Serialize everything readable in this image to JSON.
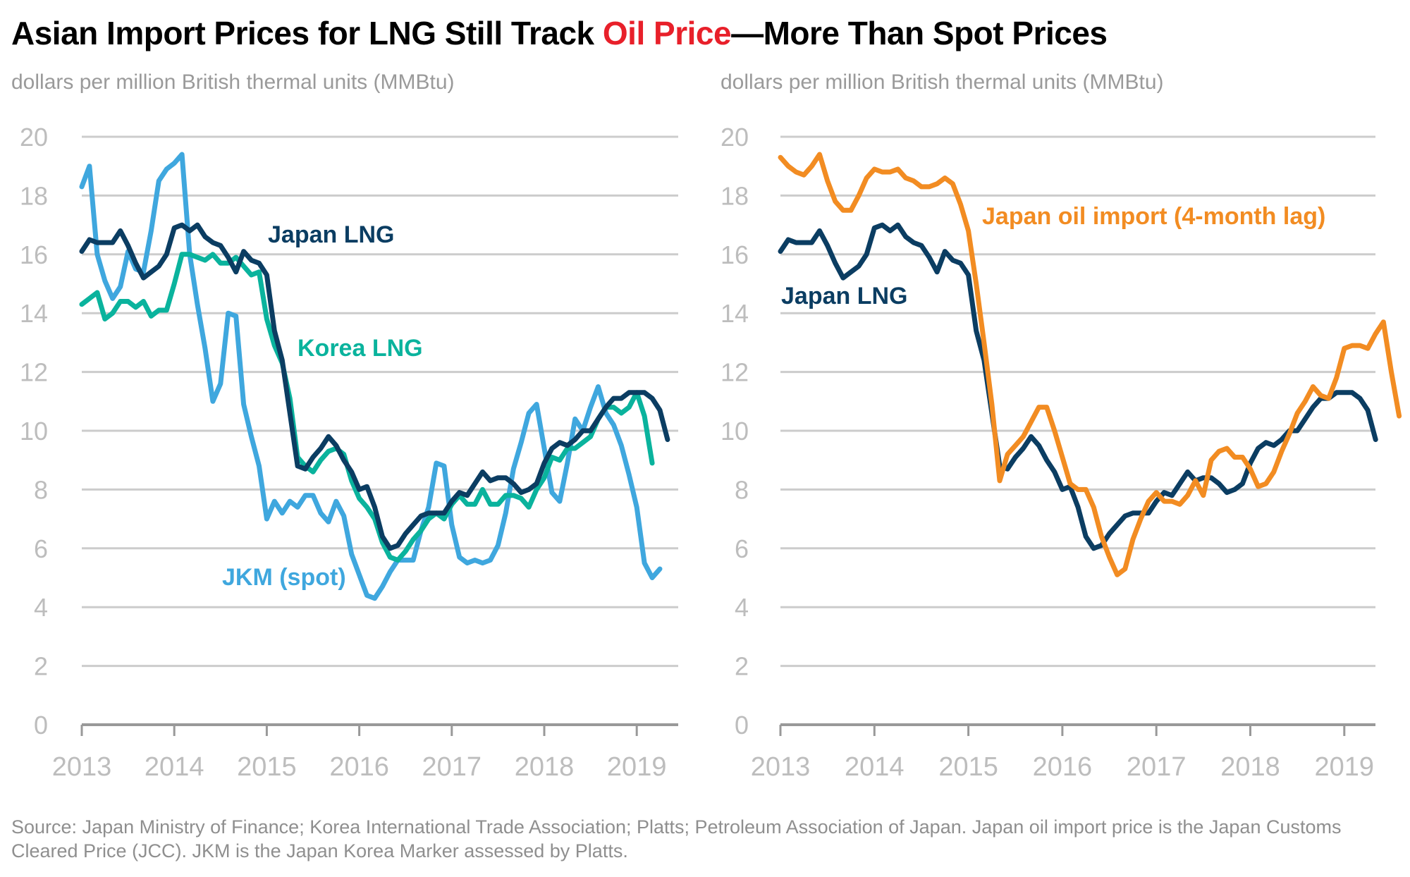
{
  "title": {
    "part1": "Asian Import Prices for LNG Still Track ",
    "highlight": "Oil Price",
    "part2": "—More Than Spot Prices"
  },
  "source": "Source: Japan Ministry of Finance; Korea International Trade Association; Platts; Petroleum Association of Japan. Japan oil import price is the Japan Customs Cleared Price (JCC). JKM is the Japan Korea Marker assessed by Platts.",
  "colors": {
    "japan_lng": "#0b3d62",
    "korea_lng": "#0ab39d",
    "jkm": "#3fa7de",
    "oil": "#f28c22",
    "highlight": "#e8202a",
    "grid": "#cccccc",
    "axis": "#999999"
  },
  "chart_data": [
    {
      "type": "line",
      "title": "",
      "ylabel": "dollars per million British thermal units (MMBtu)",
      "xlabel": "",
      "ylim": [
        0,
        20
      ],
      "yticks": [
        0,
        2,
        4,
        6,
        8,
        10,
        12,
        14,
        16,
        18,
        20
      ],
      "xticks": [
        "2013",
        "2014",
        "2015",
        "2016",
        "2017",
        "2018",
        "2019"
      ],
      "x_start": "2013-01",
      "x_frequency": "monthly",
      "grid": true,
      "series": [
        {
          "name": "Japan LNG",
          "key": "japan_lng",
          "label": "Japan LNG",
          "values": [
            16.1,
            16.5,
            16.4,
            16.4,
            16.4,
            16.8,
            16.3,
            15.7,
            15.2,
            15.4,
            15.6,
            16.0,
            16.9,
            17.0,
            16.8,
            17.0,
            16.6,
            16.4,
            16.3,
            15.9,
            15.4,
            16.1,
            15.8,
            15.7,
            15.3,
            13.4,
            12.4,
            10.6,
            8.8,
            8.7,
            9.1,
            9.4,
            9.8,
            9.5,
            9.0,
            8.6,
            8.0,
            8.1,
            7.4,
            6.4,
            6.0,
            6.1,
            6.5,
            6.8,
            7.1,
            7.2,
            7.2,
            7.2,
            7.6,
            7.9,
            7.8,
            8.2,
            8.6,
            8.3,
            8.4,
            8.4,
            8.2,
            7.9,
            8.0,
            8.2,
            8.9,
            9.4,
            9.6,
            9.5,
            9.7,
            10.0,
            10.0,
            10.4,
            10.8,
            11.1,
            11.1,
            11.3,
            11.3,
            11.3,
            11.1,
            10.7,
            9.7
          ]
        },
        {
          "name": "Korea LNG",
          "key": "korea_lng",
          "label": "Korea LNG",
          "values": [
            14.3,
            14.5,
            14.7,
            13.8,
            14.0,
            14.4,
            14.4,
            14.2,
            14.4,
            13.9,
            14.1,
            14.1,
            15.0,
            16.0,
            16.0,
            15.9,
            15.8,
            16.0,
            15.7,
            15.7,
            15.9,
            15.6,
            15.3,
            15.4,
            13.8,
            12.9,
            12.3,
            11.1,
            9.1,
            8.8,
            8.6,
            9.0,
            9.3,
            9.4,
            9.2,
            8.3,
            7.7,
            7.4,
            7.0,
            6.2,
            5.7,
            5.6,
            5.9,
            6.3,
            6.6,
            7.0,
            7.2,
            7.0,
            7.5,
            7.8,
            7.5,
            7.5,
            8.0,
            7.5,
            7.5,
            7.8,
            7.8,
            7.7,
            7.4,
            8.0,
            8.4,
            9.1,
            9.0,
            9.4,
            9.4,
            9.6,
            9.8,
            10.4,
            10.8,
            10.8,
            10.6,
            10.8,
            11.3,
            10.5,
            8.9
          ]
        },
        {
          "name": "JKM (spot)",
          "key": "jkm",
          "label": "JKM (spot)",
          "values": [
            18.3,
            19.0,
            16.0,
            15.1,
            14.5,
            14.9,
            16.1,
            15.5,
            15.4,
            16.8,
            18.5,
            18.9,
            19.1,
            19.4,
            16.0,
            14.3,
            12.8,
            11.0,
            11.6,
            14.0,
            13.9,
            10.9,
            9.8,
            8.8,
            7.0,
            7.6,
            7.2,
            7.6,
            7.4,
            7.8,
            7.8,
            7.2,
            6.9,
            7.6,
            7.1,
            5.8,
            5.1,
            4.4,
            4.3,
            4.7,
            5.2,
            5.6,
            5.6,
            5.6,
            6.6,
            7.4,
            8.9,
            8.8,
            6.8,
            5.7,
            5.5,
            5.6,
            5.5,
            5.6,
            6.1,
            7.2,
            8.7,
            9.6,
            10.6,
            10.9,
            9.4,
            7.9,
            7.6,
            8.9,
            10.4,
            10.0,
            10.8,
            11.5,
            10.6,
            10.2,
            9.5,
            8.5,
            7.4,
            5.5,
            5.0,
            5.3
          ]
        }
      ]
    },
    {
      "type": "line",
      "title": "",
      "ylabel": "dollars per million British thermal units (MMBtu)",
      "xlabel": "",
      "ylim": [
        0,
        20
      ],
      "yticks": [
        0,
        2,
        4,
        6,
        8,
        10,
        12,
        14,
        16,
        18,
        20
      ],
      "xticks": [
        "2013",
        "2014",
        "2015",
        "2016",
        "2017",
        "2018",
        "2019"
      ],
      "x_start": "2013-01",
      "x_frequency": "monthly",
      "grid": true,
      "series": [
        {
          "name": "Japan oil import (4-month lag)",
          "key": "oil",
          "label": "Japan oil import (4-month lag)",
          "values": [
            19.3,
            19.0,
            18.8,
            18.7,
            19.0,
            19.4,
            18.5,
            17.8,
            17.5,
            17.5,
            18.0,
            18.6,
            18.9,
            18.8,
            18.8,
            18.9,
            18.6,
            18.5,
            18.3,
            18.3,
            18.4,
            18.6,
            18.4,
            17.7,
            16.8,
            15.0,
            13.0,
            10.9,
            8.3,
            9.2,
            9.5,
            9.8,
            10.3,
            10.8,
            10.8,
            10.0,
            9.1,
            8.2,
            8.0,
            8.0,
            7.4,
            6.4,
            5.7,
            5.1,
            5.3,
            6.3,
            7.0,
            7.6,
            7.9,
            7.6,
            7.6,
            7.5,
            7.8,
            8.3,
            7.8,
            9.0,
            9.3,
            9.4,
            9.1,
            9.1,
            8.7,
            8.1,
            8.2,
            8.6,
            9.3,
            9.9,
            10.6,
            11.0,
            11.5,
            11.2,
            11.1,
            11.8,
            12.8,
            12.9,
            12.9,
            12.8,
            13.3,
            13.7,
            12.0,
            10.5
          ]
        },
        {
          "name": "Japan LNG",
          "key": "japan_lng",
          "label": "Japan LNG",
          "values": [
            16.1,
            16.5,
            16.4,
            16.4,
            16.4,
            16.8,
            16.3,
            15.7,
            15.2,
            15.4,
            15.6,
            16.0,
            16.9,
            17.0,
            16.8,
            17.0,
            16.6,
            16.4,
            16.3,
            15.9,
            15.4,
            16.1,
            15.8,
            15.7,
            15.3,
            13.4,
            12.4,
            10.6,
            8.8,
            8.7,
            9.1,
            9.4,
            9.8,
            9.5,
            9.0,
            8.6,
            8.0,
            8.1,
            7.4,
            6.4,
            6.0,
            6.1,
            6.5,
            6.8,
            7.1,
            7.2,
            7.2,
            7.2,
            7.6,
            7.9,
            7.8,
            8.2,
            8.6,
            8.3,
            8.4,
            8.4,
            8.2,
            7.9,
            8.0,
            8.2,
            8.9,
            9.4,
            9.6,
            9.5,
            9.7,
            10.0,
            10.0,
            10.4,
            10.8,
            11.1,
            11.1,
            11.3,
            11.3,
            11.3,
            11.1,
            10.7,
            9.7
          ]
        }
      ]
    }
  ]
}
